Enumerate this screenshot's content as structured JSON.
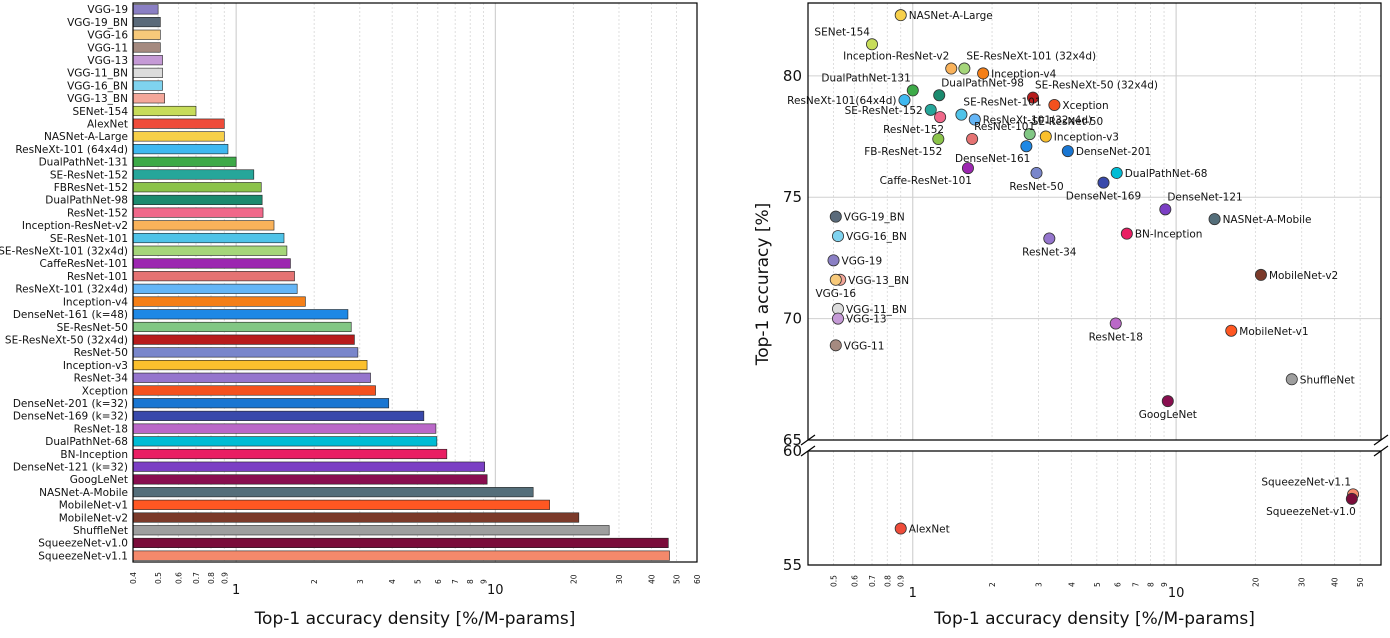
{
  "chart_data": [
    {
      "type": "bar",
      "orientation": "horizontal",
      "xscale": "log",
      "xlabel": "Top-1 accuracy density [%/M-params]",
      "xlim": [
        0.4,
        60
      ],
      "major_ticks": [
        {
          "v": 1,
          "label": "1"
        },
        {
          "v": 10,
          "label": "10"
        }
      ],
      "minor_ticks": [
        {
          "v": 0.4,
          "label": "0.4"
        },
        {
          "v": 0.5,
          "label": "0.5"
        },
        {
          "v": 0.6,
          "label": "0.6"
        },
        {
          "v": 0.7,
          "label": "0.7"
        },
        {
          "v": 0.8,
          "label": "0.8"
        },
        {
          "v": 0.9,
          "label": "0.9"
        },
        {
          "v": 2,
          "label": "2"
        },
        {
          "v": 3,
          "label": "3"
        },
        {
          "v": 4,
          "label": "4"
        },
        {
          "v": 5,
          "label": "5"
        },
        {
          "v": 6,
          "label": "6"
        },
        {
          "v": 7,
          "label": "7"
        },
        {
          "v": 8,
          "label": "8"
        },
        {
          "v": 9,
          "label": "9"
        },
        {
          "v": 20,
          "label": "20"
        },
        {
          "v": 30,
          "label": "30"
        },
        {
          "v": 40,
          "label": "40"
        },
        {
          "v": 50,
          "label": "50"
        },
        {
          "v": 60,
          "label": "60"
        }
      ],
      "bars": [
        {
          "label": "VGG-19",
          "value": 0.5,
          "color": "#8a7fc4"
        },
        {
          "label": "VGG-19_BN",
          "value": 0.51,
          "color": "#5a6a7a"
        },
        {
          "label": "VGG-16",
          "value": 0.51,
          "color": "#f7c97a"
        },
        {
          "label": "VGG-11",
          "value": 0.51,
          "color": "#a58a80"
        },
        {
          "label": "VGG-13",
          "value": 0.52,
          "color": "#c59ad6"
        },
        {
          "label": "VGG-11_BN",
          "value": 0.52,
          "color": "#dcdcdc"
        },
        {
          "label": "VGG-16_BN",
          "value": 0.52,
          "color": "#7fd3ef"
        },
        {
          "label": "VGG-13_BN",
          "value": 0.53,
          "color": "#f4a79a"
        },
        {
          "label": "SENet-154",
          "value": 0.7,
          "color": "#c7dc5a"
        },
        {
          "label": "AlexNet",
          "value": 0.9,
          "color": "#ef4c3a"
        },
        {
          "label": "NASNet-A-Large",
          "value": 0.9,
          "color": "#f7d04a"
        },
        {
          "label": "ResNeXt-101 (64x4d)",
          "value": 0.93,
          "color": "#3fb8f0"
        },
        {
          "label": "DualPathNet-131",
          "value": 1.0,
          "color": "#3daa48"
        },
        {
          "label": "SE-ResNet-152",
          "value": 1.17,
          "color": "#26a69a"
        },
        {
          "label": "FBResNet-152",
          "value": 1.25,
          "color": "#8bc34a"
        },
        {
          "label": "DualPathNet-98",
          "value": 1.26,
          "color": "#1b8a6e"
        },
        {
          "label": "ResNet-152",
          "value": 1.27,
          "color": "#f0688a"
        },
        {
          "label": "Inception-ResNet-v2",
          "value": 1.4,
          "color": "#f9b25a"
        },
        {
          "label": "SE-ResNet-101",
          "value": 1.53,
          "color": "#4fc3e8"
        },
        {
          "label": "SE-ResNeXt-101 (32x4d)",
          "value": 1.57,
          "color": "#a5d67a"
        },
        {
          "label": "CaffeResNet-101",
          "value": 1.62,
          "color": "#9c27b0"
        },
        {
          "label": "ResNet-101",
          "value": 1.68,
          "color": "#e57373"
        },
        {
          "label": "ResNeXt-101 (32x4d)",
          "value": 1.72,
          "color": "#64b5f6"
        },
        {
          "label": "Inception-v4",
          "value": 1.85,
          "color": "#f57f17"
        },
        {
          "label": "DenseNet-161 (k=48)",
          "value": 2.7,
          "color": "#1e88e5"
        },
        {
          "label": "SE-ResNet-50",
          "value": 2.78,
          "color": "#81c784"
        },
        {
          "label": "SE-ResNeXt-50 (32x4d)",
          "value": 2.86,
          "color": "#b71c1c"
        },
        {
          "label": "ResNet-50",
          "value": 2.95,
          "color": "#7986cb"
        },
        {
          "label": "Inception-v3",
          "value": 3.2,
          "color": "#fbc02d"
        },
        {
          "label": "ResNet-34",
          "value": 3.3,
          "color": "#9575cd"
        },
        {
          "label": "Xception",
          "value": 3.45,
          "color": "#f4511e"
        },
        {
          "label": "DenseNet-201 (k=32)",
          "value": 3.88,
          "color": "#1976d2"
        },
        {
          "label": "DenseNet-169 (k=32)",
          "value": 5.3,
          "color": "#3949ab"
        },
        {
          "label": "ResNet-18",
          "value": 5.9,
          "color": "#ba68c8"
        },
        {
          "label": "DualPathNet-68",
          "value": 5.95,
          "color": "#00bcd4"
        },
        {
          "label": "BN-Inception",
          "value": 6.5,
          "color": "#e91e63"
        },
        {
          "label": "DenseNet-121 (k=32)",
          "value": 9.1,
          "color": "#7b3fc4"
        },
        {
          "label": "GoogLeNet",
          "value": 9.3,
          "color": "#880e4f"
        },
        {
          "label": "NASNet-A-Mobile",
          "value": 14.0,
          "color": "#546e7a"
        },
        {
          "label": "MobileNet-v1",
          "value": 16.2,
          "color": "#ff5722"
        },
        {
          "label": "MobileNet-v2",
          "value": 21.0,
          "color": "#7b3a2a"
        },
        {
          "label": "ShuffleNet",
          "value": 27.5,
          "color": "#9e9e9e"
        },
        {
          "label": "SqueezeNet-v1.0",
          "value": 46.5,
          "color": "#7a0c3a"
        },
        {
          "label": "SqueezeNet-v1.1",
          "value": 47.0,
          "color": "#f4896b"
        }
      ]
    },
    {
      "type": "scatter",
      "xscale": "log",
      "xlabel": "Top-1 accuracy density [%/M-params]",
      "ylabel": "Top-1 accuracy [%]",
      "xlim": [
        0.4,
        60
      ],
      "ylim_upper": [
        65,
        83
      ],
      "ylim_lower": [
        55,
        60
      ],
      "axis_break": true,
      "upper_yticks": [
        {
          "v": 65,
          "label": "65"
        },
        {
          "v": 70,
          "label": "70"
        },
        {
          "v": 75,
          "label": "75"
        },
        {
          "v": 80,
          "label": "80"
        }
      ],
      "lower_yticks": [
        {
          "v": 55,
          "label": "55"
        },
        {
          "v": 60,
          "label": "60"
        }
      ],
      "major_ticks": [
        {
          "v": 1,
          "label": "1"
        },
        {
          "v": 10,
          "label": "10"
        }
      ],
      "minor_ticks": [
        {
          "v": 0.5,
          "label": "0.5"
        },
        {
          "v": 0.6,
          "label": "0.6"
        },
        {
          "v": 0.7,
          "label": "0.7"
        },
        {
          "v": 0.8,
          "label": "0.8"
        },
        {
          "v": 0.9,
          "label": "0.9"
        },
        {
          "v": 2,
          "label": "2"
        },
        {
          "v": 3,
          "label": "3"
        },
        {
          "v": 4,
          "label": "4"
        },
        {
          "v": 5,
          "label": "5"
        },
        {
          "v": 6,
          "label": "6"
        },
        {
          "v": 7,
          "label": "7"
        },
        {
          "v": 8,
          "label": "8"
        },
        {
          "v": 9,
          "label": "9"
        },
        {
          "v": 20,
          "label": "20"
        },
        {
          "v": 30,
          "label": "30"
        },
        {
          "v": 40,
          "label": "40"
        },
        {
          "v": 50,
          "label": "50"
        }
      ],
      "points": [
        {
          "label": "NASNet-A-Large",
          "x": 0.9,
          "y": 82.5,
          "color": "#f7d04a",
          "anchor": "right"
        },
        {
          "label": "SENet-154",
          "x": 0.7,
          "y": 81.3,
          "color": "#c7dc5a",
          "anchor": "above-left"
        },
        {
          "label": "Inception-ResNet-v2",
          "x": 1.4,
          "y": 80.3,
          "color": "#f9b25a",
          "anchor": "above-left"
        },
        {
          "label": "SE-ResNeXt-101 (32x4d)",
          "x": 1.57,
          "y": 80.3,
          "color": "#a5d67a",
          "anchor": "above-right"
        },
        {
          "label": "Inception-v4",
          "x": 1.85,
          "y": 80.1,
          "color": "#f57f17",
          "anchor": "right"
        },
        {
          "label": "DualPathNet-131",
          "x": 1.0,
          "y": 79.4,
          "color": "#3daa48",
          "anchor": "above-left"
        },
        {
          "label": "DualPathNet-98",
          "x": 1.26,
          "y": 79.2,
          "color": "#1b8a6e",
          "anchor": "above-right"
        },
        {
          "label": "ResNeXt-101(64x4d)",
          "x": 0.93,
          "y": 79.0,
          "color": "#3fb8f0",
          "anchor": "left"
        },
        {
          "label": "SE-ResNeXt-50 (32x4d)",
          "x": 2.86,
          "y": 79.1,
          "color": "#b71c1c",
          "anchor": "above-right"
        },
        {
          "label": "Xception",
          "x": 3.45,
          "y": 78.8,
          "color": "#f4511e",
          "anchor": "right"
        },
        {
          "label": "SE-ResNet-101",
          "x": 1.53,
          "y": 78.4,
          "color": "#4fc3e8",
          "anchor": "above-right"
        },
        {
          "label": "SE-ResNet-152",
          "x": 1.17,
          "y": 78.6,
          "color": "#26a69a",
          "anchor": "left"
        },
        {
          "label": "ResNeXt-101(32x4d)",
          "x": 1.72,
          "y": 78.2,
          "color": "#64b5f6",
          "anchor": "right"
        },
        {
          "label": "ResNet-152",
          "x": 1.27,
          "y": 78.3,
          "color": "#f0688a",
          "anchor": "below-left"
        },
        {
          "label": "SE-ResNet-50",
          "x": 2.78,
          "y": 77.6,
          "color": "#81c784",
          "anchor": "above-right"
        },
        {
          "label": "ResNet-101",
          "x": 1.68,
          "y": 77.4,
          "color": "#e57373",
          "anchor": "above-right"
        },
        {
          "label": "Inception-v3",
          "x": 3.2,
          "y": 77.5,
          "color": "#fbc02d",
          "anchor": "right"
        },
        {
          "label": "FB-ResNet-152",
          "x": 1.25,
          "y": 77.4,
          "color": "#8bc34a",
          "anchor": "below-left"
        },
        {
          "label": "DenseNet-161",
          "x": 2.7,
          "y": 77.1,
          "color": "#1e88e5",
          "anchor": "below-left"
        },
        {
          "label": "DenseNet-201",
          "x": 3.88,
          "y": 76.9,
          "color": "#1976d2",
          "anchor": "right"
        },
        {
          "label": "DualPathNet-68",
          "x": 5.95,
          "y": 76.0,
          "color": "#00bcd4",
          "anchor": "right"
        },
        {
          "label": "Caffe-ResNet-101",
          "x": 1.62,
          "y": 76.2,
          "color": "#9c27b0",
          "anchor": "below-left"
        },
        {
          "label": "ResNet-50",
          "x": 2.95,
          "y": 76.0,
          "color": "#7986cb",
          "anchor": "below"
        },
        {
          "label": "DenseNet-169",
          "x": 5.3,
          "y": 75.6,
          "color": "#3949ab",
          "anchor": "below"
        },
        {
          "label": "DenseNet-121",
          "x": 9.1,
          "y": 74.5,
          "color": "#7b3fc4",
          "anchor": "above-right"
        },
        {
          "label": "NASNet-A-Mobile",
          "x": 14.0,
          "y": 74.1,
          "color": "#546e7a",
          "anchor": "right"
        },
        {
          "label": "VGG-19_BN",
          "x": 0.51,
          "y": 74.2,
          "color": "#5a6a7a",
          "anchor": "right"
        },
        {
          "label": "VGG-16_BN",
          "x": 0.52,
          "y": 73.4,
          "color": "#7fd3ef",
          "anchor": "right"
        },
        {
          "label": "BN-Inception",
          "x": 6.5,
          "y": 73.5,
          "color": "#e91e63",
          "anchor": "right"
        },
        {
          "label": "ResNet-34",
          "x": 3.3,
          "y": 73.3,
          "color": "#9575cd",
          "anchor": "below"
        },
        {
          "label": "VGG-19",
          "x": 0.5,
          "y": 72.4,
          "color": "#8a7fc4",
          "anchor": "right"
        },
        {
          "label": "MobileNet-v2",
          "x": 21.0,
          "y": 71.8,
          "color": "#7b3a2a",
          "anchor": "right"
        },
        {
          "label": "VGG-13_BN",
          "x": 0.53,
          "y": 71.6,
          "color": "#f4a79a",
          "anchor": "right"
        },
        {
          "label": "VGG-16",
          "x": 0.51,
          "y": 71.6,
          "color": "#f7c97a",
          "anchor": "below"
        },
        {
          "label": "VGG-11_BN",
          "x": 0.52,
          "y": 70.4,
          "color": "#dcdcdc",
          "anchor": "right"
        },
        {
          "label": "VGG-13",
          "x": 0.52,
          "y": 70.0,
          "color": "#c59ad6",
          "anchor": "right"
        },
        {
          "label": "ResNet-18",
          "x": 5.9,
          "y": 69.8,
          "color": "#ba68c8",
          "anchor": "below"
        },
        {
          "label": "MobileNet-v1",
          "x": 16.2,
          "y": 69.5,
          "color": "#ff5722",
          "anchor": "right"
        },
        {
          "label": "VGG-11",
          "x": 0.51,
          "y": 68.9,
          "color": "#a58a80",
          "anchor": "right"
        },
        {
          "label": "ShuffleNet",
          "x": 27.5,
          "y": 67.5,
          "color": "#9e9e9e",
          "anchor": "right"
        },
        {
          "label": "GoogLeNet",
          "x": 9.3,
          "y": 66.6,
          "color": "#880e4f",
          "anchor": "below"
        },
        {
          "label": "SqueezeNet-v1.1",
          "x": 47.0,
          "y": 58.1,
          "color": "#f4896b",
          "anchor": "above-left"
        },
        {
          "label": "SqueezeNet-v1.0",
          "x": 46.5,
          "y": 57.9,
          "color": "#7a0c3a",
          "anchor": "below-left"
        },
        {
          "label": "AlexNet",
          "x": 0.9,
          "y": 56.6,
          "color": "#ef4c3a",
          "anchor": "right"
        }
      ]
    }
  ]
}
